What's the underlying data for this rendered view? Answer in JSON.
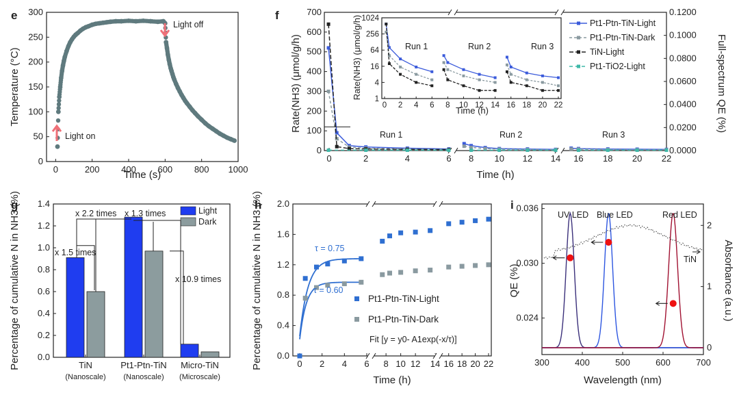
{
  "chart_data": [
    {
      "panel": "e",
      "type": "scatter",
      "xlabel": "Time (s)",
      "ylabel": "Temperature (°C)",
      "xlim": [
        -50,
        1000
      ],
      "ylim": [
        0,
        300
      ],
      "xticks": [
        "0",
        "200",
        "400",
        "600",
        "800",
        "1000"
      ],
      "yticks": [
        "0",
        "50",
        "100",
        "150",
        "200",
        "250",
        "300"
      ],
      "series": [
        {
          "name": "Temperature",
          "color": "#5f7a7e",
          "x": [
            10,
            15,
            20,
            25,
            30,
            35,
            40,
            45,
            50,
            60,
            70,
            80,
            90,
            100,
            110,
            120,
            135,
            150,
            165,
            180,
            200,
            220,
            240,
            260,
            280,
            300,
            330,
            360,
            400,
            440,
            480,
            520,
            560,
            590,
            600,
            605,
            610,
            615,
            620,
            625,
            630,
            635,
            640,
            645,
            650,
            660,
            670,
            680,
            690,
            700,
            710,
            720,
            735,
            750,
            765,
            780,
            800,
            820,
            840,
            860,
            880,
            900,
            920,
            940,
            960,
            980
          ],
          "y": [
            30,
            100,
            130,
            150,
            168,
            182,
            193,
            202,
            210,
            222,
            232,
            240,
            246,
            251,
            255,
            258,
            263,
            267,
            270,
            272,
            275,
            277,
            278,
            279,
            280,
            281,
            282,
            282,
            283,
            282,
            283,
            282,
            281,
            282,
            278,
            240,
            228,
            215,
            205,
            196,
            188,
            182,
            176,
            170,
            165,
            156,
            148,
            141,
            134,
            128,
            122,
            117,
            110,
            103,
            97,
            91,
            84,
            77,
            71,
            66,
            61,
            56,
            52,
            48,
            45,
            42
          ]
        }
      ],
      "annotations": {
        "light_on": "Light on",
        "light_off": "Light off"
      }
    },
    {
      "panel": "f",
      "type": "line",
      "xlabel": "Time (h)",
      "ylabel": "Rate(NH3) (μmol/g/h)",
      "y2label": "Full-spectrum QE (%)",
      "ylim": [
        0,
        700
      ],
      "y2lim": [
        0,
        0.12
      ],
      "xlim": [
        0,
        22
      ],
      "xticks": [
        "0",
        "2",
        "4",
        "6",
        "8",
        "10",
        "12",
        "14",
        "16",
        "18",
        "20",
        "22"
      ],
      "yticks": [
        "0",
        "100",
        "200",
        "300",
        "400",
        "500",
        "600",
        "700"
      ],
      "y2ticks": [
        "0.0000",
        "0.0200",
        "0.0400",
        "0.0600",
        "0.0800",
        "0.1000",
        "0.1200"
      ],
      "runs": [
        "Run 1",
        "Run 2",
        "Run 3"
      ],
      "series": [
        {
          "name": "Pt1-Ptn-TiN-Light",
          "color": "#3b5bdb",
          "x": [
            0.2,
            0.6,
            1.2,
            2,
            4,
            6,
            7.5,
            8,
            9,
            10,
            12,
            14,
            15.5,
            16,
            18,
            20,
            22
          ],
          "y": [
            520,
            90,
            25,
            18,
            12,
            8,
            35,
            25,
            15,
            10,
            8,
            6,
            12,
            10,
            8,
            7,
            6
          ]
        },
        {
          "name": "Pt1-Ptn-TiN-Dark",
          "color": "#8a9aa0",
          "x": [
            0.2,
            0.6,
            1.2,
            2,
            4,
            6,
            7.5,
            8,
            9,
            10,
            12,
            14,
            15.5,
            16,
            18,
            20,
            22
          ],
          "y": [
            300,
            60,
            18,
            12,
            8,
            5,
            22,
            16,
            10,
            7,
            5,
            4,
            8,
            7,
            5,
            4,
            4
          ]
        },
        {
          "name": "TiN-Light",
          "color": "#222222",
          "x": [
            0.2,
            0.6,
            1.2,
            2,
            4,
            6
          ],
          "y": [
            640,
            20,
            10,
            8,
            6,
            5
          ]
        },
        {
          "name": "Pt1-TiO2-Light",
          "color": "#3fb8a8",
          "x": [
            0.2,
            2,
            4,
            6,
            8,
            10,
            12,
            14,
            16,
            18,
            20,
            22
          ],
          "y": [
            2,
            2,
            2,
            2,
            2,
            2,
            2,
            2,
            2,
            2,
            2,
            2
          ]
        }
      ],
      "legend_labels": [
        "Pt1-Ptn-TiN-Light",
        "Pt1-Ptn-TiN-Dark",
        "TiN-Light",
        "Pt1-TiO2-Light"
      ],
      "inset": {
        "xlabel": "Time (h)",
        "ylabel": "Rate(NH3) (μmol/g/h)",
        "yticks": [
          "1",
          "4",
          "16",
          "64",
          "256",
          "1024"
        ],
        "xticks": [
          "0",
          "2",
          "4",
          "6",
          "8",
          "10",
          "12",
          "14",
          "16",
          "18",
          "20",
          "22"
        ],
        "runs": [
          "Run 1",
          "Run 2",
          "Run 3"
        ],
        "light": {
          "x": [
            0.2,
            0.6,
            2,
            4,
            6,
            7.5,
            8,
            10,
            12,
            14,
            15.5,
            16,
            18,
            20,
            22
          ],
          "y": [
            600,
            80,
            30,
            15,
            10,
            40,
            22,
            12,
            8,
            6,
            35,
            15,
            9,
            7,
            6
          ]
        },
        "dark": {
          "x": [
            0.2,
            0.6,
            2,
            4,
            6,
            7.5,
            8,
            10,
            12,
            14,
            15.5,
            16,
            18,
            20,
            22
          ],
          "y": [
            300,
            40,
            15,
            8,
            5,
            22,
            12,
            7,
            5,
            4,
            18,
            8,
            5,
            4,
            3
          ]
        },
        "tin": {
          "x": [
            0.2,
            0.6,
            2,
            4,
            6,
            7.5,
            8,
            10,
            12,
            14,
            15.5,
            16,
            18,
            20,
            22
          ],
          "y": [
            600,
            20,
            8,
            4,
            3,
            12,
            5,
            3,
            2,
            2,
            10,
            4,
            3,
            2,
            2
          ]
        }
      }
    },
    {
      "panel": "g",
      "type": "bar",
      "ylabel": "Percentage of cumulative N in NH3 (%)",
      "ylim": [
        0,
        1.4
      ],
      "yticks": [
        "0.0",
        "0.2",
        "0.4",
        "0.6",
        "0.8",
        "1.0",
        "1.2",
        "1.4"
      ],
      "categories": [
        "TiN",
        "Pt1-Ptn-TiN",
        "Micro-TiN"
      ],
      "subcategories": [
        "(Nanoscale)",
        "(Nanoscale)",
        "(Microscale)"
      ],
      "series": [
        {
          "name": "Light",
          "color": "#1f3df0",
          "values": [
            0.91,
            1.28,
            0.12
          ]
        },
        {
          "name": "Dark",
          "color": "#8c9c9e",
          "values": [
            0.6,
            0.97,
            0.05
          ]
        }
      ],
      "annotations": [
        "x 1.5 times",
        "x 2.2 times",
        "x 1.3 times",
        "x 10.9 times"
      ]
    },
    {
      "panel": "h",
      "type": "scatter",
      "xlabel": "Time (h)",
      "ylabel": "Percentage of cumulative N in NH3 (%)",
      "ylim": [
        0,
        2.0
      ],
      "yticks": [
        "0.0",
        "0.4",
        "0.8",
        "1.2",
        "1.6",
        "2.0"
      ],
      "xticks": [
        "0",
        "2",
        "4",
        "6",
        "8",
        "10",
        "12",
        "14",
        "16",
        "18",
        "20",
        "22"
      ],
      "series": [
        {
          "name": "Pt1-Ptn-TiN-Light",
          "color": "#2f6fd1",
          "x": [
            0,
            0.5,
            1.5,
            2.5,
            4,
            5.5,
            7.5,
            8.5,
            10,
            12,
            14,
            16,
            18,
            20,
            22
          ],
          "y": [
            0,
            1.02,
            1.17,
            1.21,
            1.25,
            1.28,
            1.51,
            1.58,
            1.62,
            1.63,
            1.65,
            1.74,
            1.76,
            1.78,
            1.8
          ]
        },
        {
          "name": "Pt1-Ptn-TiN-Dark",
          "color": "#8a9aa0",
          "x": [
            0.5,
            1.5,
            2.5,
            4,
            5.5,
            7.5,
            8.5,
            10,
            12,
            14,
            16,
            18,
            20,
            22
          ],
          "y": [
            0.76,
            0.9,
            0.93,
            0.95,
            0.97,
            1.07,
            1.09,
            1.1,
            1.12,
            1.13,
            1.17,
            1.18,
            1.19,
            1.2
          ]
        }
      ],
      "tau_light": "τ = 0.75",
      "tau_dark": "τ = 0.60",
      "fit_label": "Fit [y = y0- A1exp(-x/τ)]"
    },
    {
      "panel": "i",
      "type": "line",
      "xlabel": "Wavelength (nm)",
      "ylabel": "QE (%)",
      "y2label": "Absorbance (a.u.)",
      "xlim": [
        300,
        700
      ],
      "xticks": [
        "300",
        "400",
        "500",
        "600",
        "700"
      ],
      "ylim": [
        0.02,
        0.0365
      ],
      "yticks": [
        "0.024",
        "0.030",
        "0.036"
      ],
      "y2ticks": [
        "0",
        "1",
        "2"
      ],
      "leds": [
        {
          "name": "UV LED",
          "peak_nm": 370,
          "color": "#3a2f7a"
        },
        {
          "name": "Blue LED",
          "peak_nm": 465,
          "color": "#2c55e0"
        },
        {
          "name": "Red LED",
          "peak_nm": 625,
          "color": "#a01030"
        }
      ],
      "qe_points": [
        {
          "x": 370,
          "y": 0.0306
        },
        {
          "x": 465,
          "y": 0.0323
        },
        {
          "x": 625,
          "y": 0.0256
        }
      ],
      "tin_label": "TiN"
    }
  ],
  "panel_labels": [
    "e",
    "f",
    "g",
    "h",
    "i"
  ]
}
